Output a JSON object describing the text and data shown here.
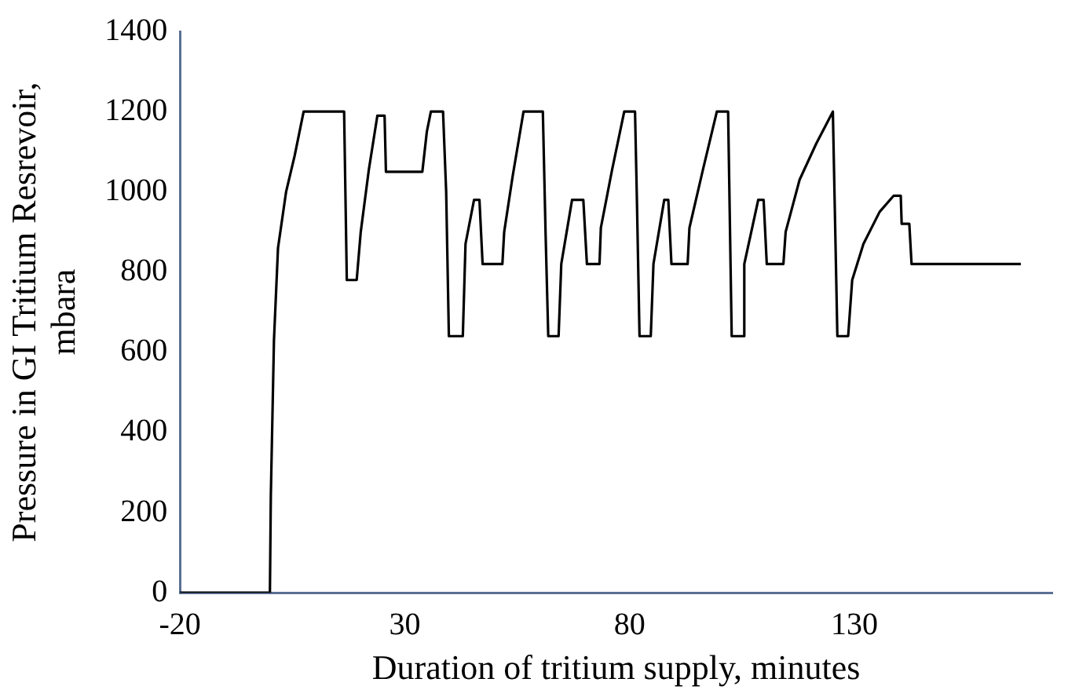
{
  "chart_data": {
    "type": "line",
    "xlabel": "Duration of tritium supply, minutes",
    "ylabel": "Pressure in GI Tritium Resrevoir, mbara",
    "xlim": [
      -20,
      174
    ],
    "xticks": [
      -20,
      30,
      80,
      130
    ],
    "ylim": [
      0,
      1400
    ],
    "yticks": [
      0,
      200,
      400,
      600,
      800,
      1000,
      1200,
      1400
    ],
    "grid": false,
    "legend": false,
    "marker": "none",
    "line_style": "solid",
    "series": [
      {
        "color": "#000000",
        "x": [
          -20,
          0,
          0.2,
          0.9,
          1.8,
          3.6,
          5.5,
          7.5,
          16.5,
          17.1,
          19.3,
          20.2,
          22.0,
          23.9,
          25.5,
          25.8,
          33.9,
          34.9,
          35.8,
          38.5,
          39.2,
          39.8,
          42.9,
          43.5,
          45.4,
          46.6,
          47.3,
          51.7,
          52.1,
          54.0,
          56.4,
          60.7,
          61.3,
          61.9,
          64.2,
          64.8,
          67.2,
          69.7,
          70.5,
          73.3,
          73.6,
          76.1,
          78.8,
          81.2,
          81.6,
          82.2,
          84.7,
          85.3,
          87.7,
          88.6,
          89.3,
          92.9,
          93.3,
          96.3,
          99.4,
          101.9,
          102.2,
          102.7,
          105.2,
          105.5,
          108.6,
          109.8,
          110.5,
          114.2,
          114.7,
          117.8,
          121.5,
          125.2,
          126.2,
          128.6,
          129.5,
          132.0,
          135.6,
          138.7,
          140.3,
          140.5,
          142.2,
          142.7,
          167
        ],
        "values": [
          0,
          0,
          240,
          630,
          860,
          1000,
          1090,
          1200,
          1200,
          780,
          780,
          900,
          1055,
          1190,
          1190,
          1050,
          1050,
          1150,
          1200,
          1200,
          1000,
          640,
          640,
          870,
          980,
          980,
          820,
          820,
          900,
          1040,
          1200,
          1200,
          900,
          640,
          640,
          820,
          980,
          980,
          820,
          820,
          910,
          1055,
          1200,
          1200,
          990,
          640,
          640,
          820,
          980,
          980,
          820,
          820,
          910,
          1055,
          1200,
          1200,
          990,
          640,
          640,
          820,
          980,
          980,
          820,
          820,
          900,
          1030,
          1120,
          1200,
          640,
          640,
          780,
          870,
          950,
          990,
          990,
          920,
          920,
          820,
          820
        ]
      }
    ]
  }
}
